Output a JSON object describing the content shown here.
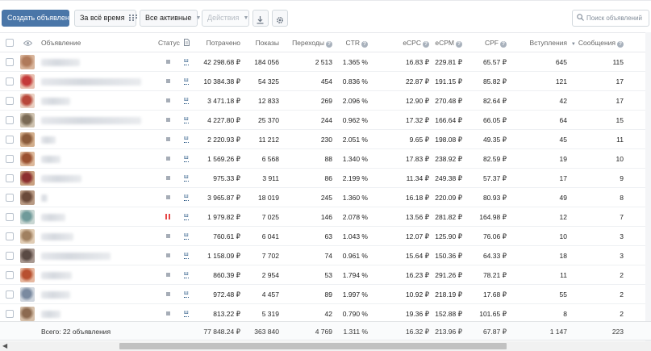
{
  "toolbar": {
    "create_label": "Создать объявление",
    "period_label": "За всё время",
    "filter_label": "Все активные",
    "actions_label": "Действия",
    "search_placeholder": "Поиск объявлений"
  },
  "icons": {
    "calendar": "calendar-icon",
    "download": "download-icon",
    "settings": "gear-icon",
    "search": "search-icon",
    "eye": "eye-icon",
    "doc": "document-icon"
  },
  "columns": {
    "ad": "Объявление",
    "status": "Статус",
    "spent": "Потрачено",
    "impressions": "Показы",
    "clicks": "Переходы",
    "ctr": "CTR",
    "ecpc": "eCPC",
    "ecpm": "eCPM",
    "cpf": "CPF",
    "joins": "Вступления",
    "messages": "Сообщения"
  },
  "colors": {
    "accent": "#4a76a8",
    "link": "#2a5885",
    "paused": "#e64646"
  },
  "rows": [
    {
      "status": "active",
      "stat": "ш",
      "spent": "42 298.68 ₽",
      "impressions": "184 056",
      "clicks": "2 513",
      "ctr": "1.365 %",
      "ecpc": "16.83 ₽",
      "ecpm": "229.81 ₽",
      "cpf": "65.57 ₽",
      "joins": "645",
      "messages": "115"
    },
    {
      "status": "active",
      "stat": "ш",
      "spent": "10 384.38 ₽",
      "impressions": "54 325",
      "clicks": "454",
      "ctr": "0.836 %",
      "ecpc": "22.87 ₽",
      "ecpm": "191.15 ₽",
      "cpf": "85.82 ₽",
      "joins": "121",
      "messages": "17"
    },
    {
      "status": "active",
      "stat": "ш",
      "spent": "3 471.18 ₽",
      "impressions": "12 833",
      "clicks": "269",
      "ctr": "2.096 %",
      "ecpc": "12.90 ₽",
      "ecpm": "270.48 ₽",
      "cpf": "82.64 ₽",
      "joins": "42",
      "messages": "17"
    },
    {
      "status": "active",
      "stat": "ш",
      "spent": "4 227.80 ₽",
      "impressions": "25 370",
      "clicks": "244",
      "ctr": "0.962 %",
      "ecpc": "17.32 ₽",
      "ecpm": "166.64 ₽",
      "cpf": "66.05 ₽",
      "joins": "64",
      "messages": "15"
    },
    {
      "status": "active",
      "stat": "ш",
      "spent": "2 220.93 ₽",
      "impressions": "11 212",
      "clicks": "230",
      "ctr": "2.051 %",
      "ecpc": "9.65 ₽",
      "ecpm": "198.08 ₽",
      "cpf": "49.35 ₽",
      "joins": "45",
      "messages": "11"
    },
    {
      "status": "active",
      "stat": "ш",
      "spent": "1 569.26 ₽",
      "impressions": "6 568",
      "clicks": "88",
      "ctr": "1.340 %",
      "ecpc": "17.83 ₽",
      "ecpm": "238.92 ₽",
      "cpf": "82.59 ₽",
      "joins": "19",
      "messages": "10"
    },
    {
      "status": "active",
      "stat": "ш",
      "spent": "975.33 ₽",
      "impressions": "3 911",
      "clicks": "86",
      "ctr": "2.199 %",
      "ecpc": "11.34 ₽",
      "ecpm": "249.38 ₽",
      "cpf": "57.37 ₽",
      "joins": "17",
      "messages": "9"
    },
    {
      "status": "active",
      "stat": "ш",
      "spent": "3 965.87 ₽",
      "impressions": "18 019",
      "clicks": "245",
      "ctr": "1.360 %",
      "ecpc": "16.18 ₽",
      "ecpm": "220.09 ₽",
      "cpf": "80.93 ₽",
      "joins": "49",
      "messages": "8"
    },
    {
      "status": "paused",
      "stat": "ш",
      "spent": "1 979.82 ₽",
      "impressions": "7 025",
      "clicks": "146",
      "ctr": "2.078 %",
      "ecpc": "13.56 ₽",
      "ecpm": "281.82 ₽",
      "cpf": "164.98 ₽",
      "joins": "12",
      "messages": "7"
    },
    {
      "status": "active",
      "stat": "ш",
      "spent": "760.61 ₽",
      "impressions": "6 041",
      "clicks": "63",
      "ctr": "1.043 %",
      "ecpc": "12.07 ₽",
      "ecpm": "125.90 ₽",
      "cpf": "76.06 ₽",
      "joins": "10",
      "messages": "3"
    },
    {
      "status": "active",
      "stat": "ш",
      "spent": "1 158.09 ₽",
      "impressions": "7 702",
      "clicks": "74",
      "ctr": "0.961 %",
      "ecpc": "15.64 ₽",
      "ecpm": "150.36 ₽",
      "cpf": "64.33 ₽",
      "joins": "18",
      "messages": "3"
    },
    {
      "status": "active",
      "stat": "ш",
      "spent": "860.39 ₽",
      "impressions": "2 954",
      "clicks": "53",
      "ctr": "1.794 %",
      "ecpc": "16.23 ₽",
      "ecpm": "291.26 ₽",
      "cpf": "78.21 ₽",
      "joins": "11",
      "messages": "2"
    },
    {
      "status": "active",
      "stat": "ш",
      "spent": "972.48 ₽",
      "impressions": "4 457",
      "clicks": "89",
      "ctr": "1.997 %",
      "ecpc": "10.92 ₽",
      "ecpm": "218.19 ₽",
      "cpf": "17.68 ₽",
      "joins": "55",
      "messages": "2"
    },
    {
      "status": "active",
      "stat": "ш",
      "spent": "813.22 ₽",
      "impressions": "5 319",
      "clicks": "42",
      "ctr": "0.790 %",
      "ecpc": "19.36 ₽",
      "ecpm": "152.88 ₽",
      "cpf": "101.65 ₽",
      "joins": "8",
      "messages": "2"
    }
  ],
  "footer": {
    "total_label": "Всего: 22 объявления",
    "spent": "77 848.24 ₽",
    "impressions": "363 840",
    "clicks": "4 769",
    "ctr": "1.311 %",
    "ecpc": "16.32 ₽",
    "ecpm": "213.96 ₽",
    "cpf": "67.87 ₽",
    "joins": "1 147",
    "messages": "223"
  }
}
